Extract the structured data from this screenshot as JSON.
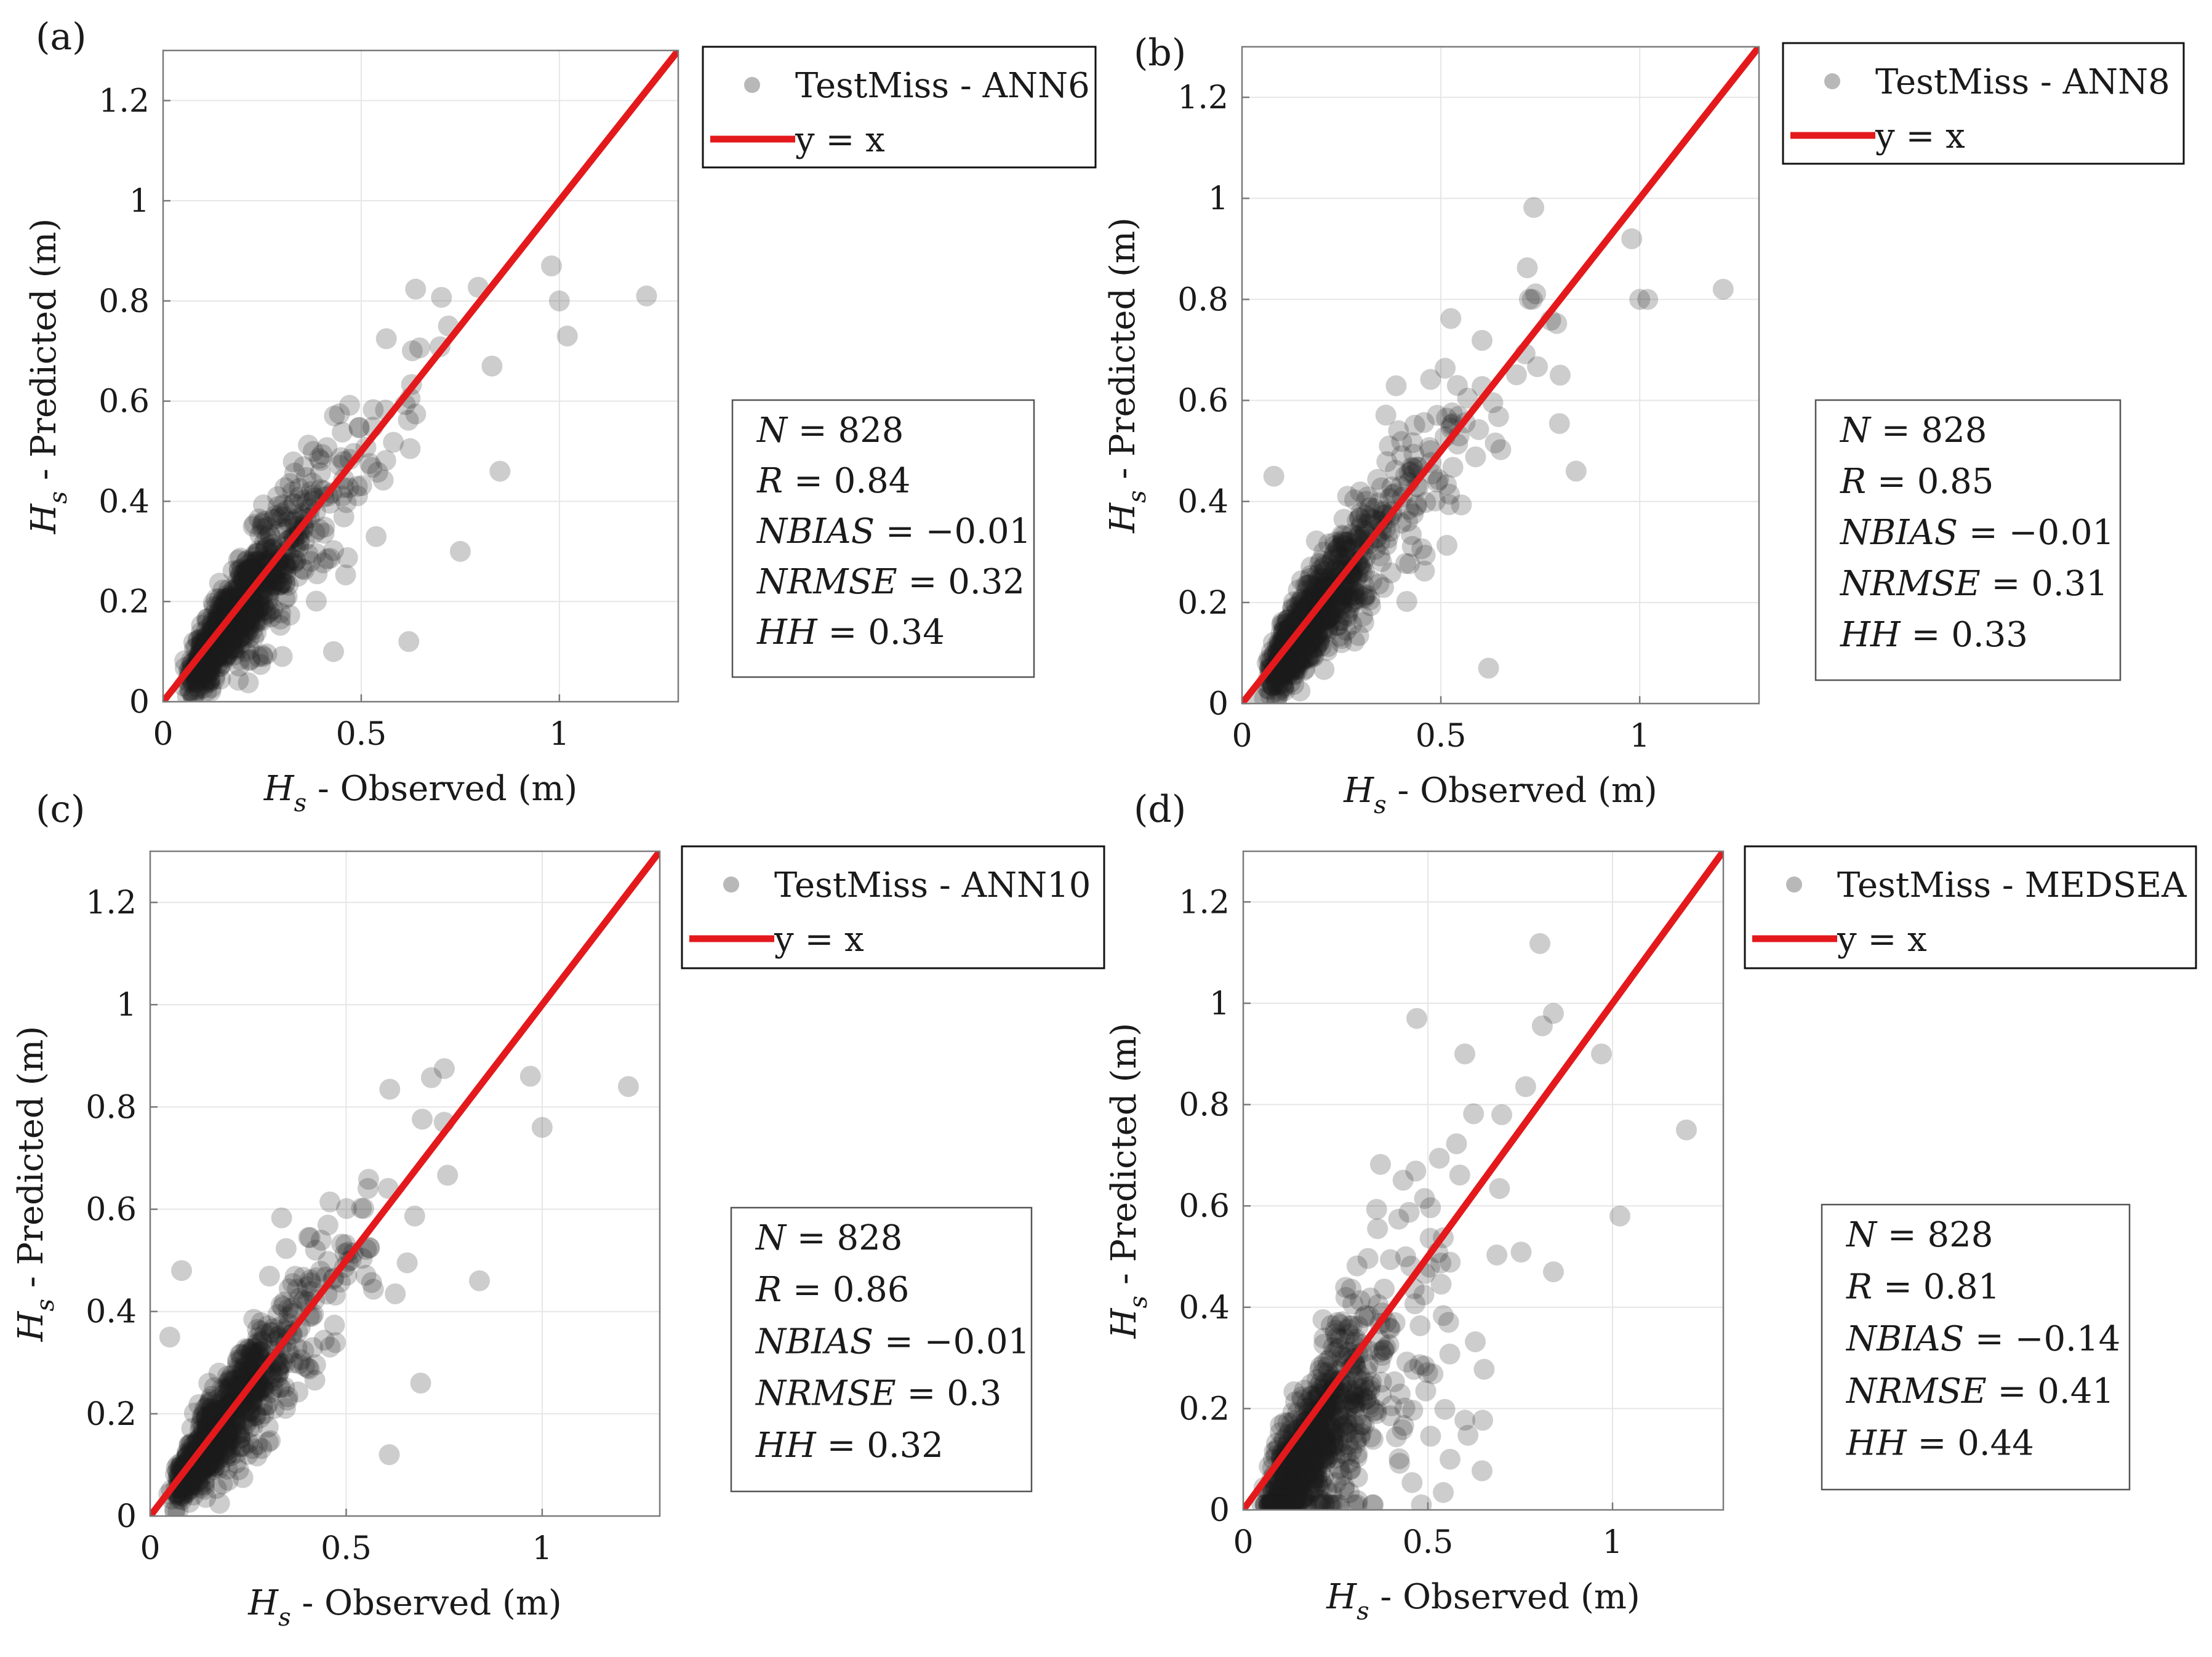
{
  "colors": {
    "points": "#1c1c1c",
    "reference_line": "#e3191c",
    "legend_marker": "#b8b8b8",
    "grid": "#e6e6e6",
    "frame": "#7a7a7a"
  },
  "chart_data": [
    {
      "type": "scatter",
      "panel": "(a)",
      "xlabel": {
        "symbol": "H",
        "sub": "s",
        "text": " - Observed (m)"
      },
      "ylabel": {
        "symbol": "H",
        "sub": "s",
        "text": " - Predicted (m)"
      },
      "xlim": [
        0,
        1.3
      ],
      "ylim": [
        0,
        1.3
      ],
      "xticks": [
        0,
        0.5,
        1
      ],
      "xtick_labels": [
        "0",
        "0.5",
        "1"
      ],
      "yticks": [
        0,
        0.2,
        0.4,
        0.6,
        0.8,
        1,
        1.2
      ],
      "ytick_labels": [
        "0",
        "0.2",
        "0.4",
        "0.6",
        "0.8",
        "1",
        "1.2"
      ],
      "grid": true,
      "legend": {
        "position": "top-right-outside",
        "entries": [
          "TestMiss - ANN6",
          "y = x"
        ]
      },
      "reference_line": {
        "label": "y = x",
        "from": [
          0,
          0
        ],
        "to": [
          1.3,
          1.3
        ]
      },
      "stats": [
        {
          "name": "N",
          "value": "= 828"
        },
        {
          "name": "R",
          "value": "= 0.84"
        },
        {
          "name": "NBIAS",
          "value": "= −0.01"
        },
        {
          "name": "NRMSE",
          "value": "= 0.32"
        },
        {
          "name": "HH",
          "value": "= 0.34"
        }
      ],
      "point_cloud": {
        "n": 828,
        "note_fit_slope": 1.0,
        "bias": -0.01
      },
      "outliers": [
        [
          1.22,
          0.81
        ],
        [
          0.98,
          0.87
        ],
        [
          1.0,
          0.8
        ],
        [
          1.02,
          0.73
        ],
        [
          0.83,
          0.67
        ],
        [
          0.85,
          0.46
        ],
        [
          0.62,
          0.12
        ],
        [
          0.43,
          0.1
        ],
        [
          0.72,
          0.75
        ],
        [
          0.75,
          0.3
        ]
      ]
    },
    {
      "type": "scatter",
      "panel": "(b)",
      "xlabel": {
        "symbol": "H",
        "sub": "s",
        "text": " - Observed (m)"
      },
      "ylabel": {
        "symbol": "H",
        "sub": "s",
        "text": " - Predicted (m)"
      },
      "xlim": [
        0,
        1.3
      ],
      "ylim": [
        0,
        1.3
      ],
      "xticks": [
        0,
        0.5,
        1
      ],
      "xtick_labels": [
        "0",
        "0.5",
        "1"
      ],
      "yticks": [
        0,
        0.2,
        0.4,
        0.6,
        0.8,
        1,
        1.2
      ],
      "ytick_labels": [
        "0",
        "0.2",
        "0.4",
        "0.6",
        "0.8",
        "1",
        "1.2"
      ],
      "grid": true,
      "legend": {
        "position": "top-right-outside",
        "entries": [
          "TestMiss - ANN8",
          "y = x"
        ]
      },
      "reference_line": {
        "label": "y = x",
        "from": [
          0,
          0
        ],
        "to": [
          1.3,
          1.3
        ]
      },
      "stats": [
        {
          "name": "N",
          "value": "= 828"
        },
        {
          "name": "R",
          "value": "= 0.85"
        },
        {
          "name": "NBIAS",
          "value": "= −0.01"
        },
        {
          "name": "NRMSE",
          "value": "= 0.31"
        },
        {
          "name": "HH",
          "value": "= 0.33"
        }
      ],
      "point_cloud": {
        "n": 828,
        "note_fit_slope": 1.0,
        "bias": -0.01
      },
      "outliers": [
        [
          1.21,
          0.82
        ],
        [
          0.98,
          0.92
        ],
        [
          1.0,
          0.8
        ],
        [
          1.02,
          0.8
        ],
        [
          0.84,
          0.46
        ],
        [
          0.62,
          0.07
        ],
        [
          0.73,
          0.8
        ],
        [
          0.8,
          0.65
        ],
        [
          0.08,
          0.45
        ]
      ]
    },
    {
      "type": "scatter",
      "panel": "(c)",
      "xlabel": {
        "symbol": "H",
        "sub": "s",
        "text": " - Observed (m)"
      },
      "ylabel": {
        "symbol": "H",
        "sub": "s",
        "text": " - Predicted (m)"
      },
      "xlim": [
        0,
        1.3
      ],
      "ylim": [
        0,
        1.3
      ],
      "xticks": [
        0,
        0.5,
        1
      ],
      "xtick_labels": [
        "0",
        "0.5",
        "1"
      ],
      "yticks": [
        0,
        0.2,
        0.4,
        0.6,
        0.8,
        1,
        1.2
      ],
      "ytick_labels": [
        "0",
        "0.2",
        "0.4",
        "0.6",
        "0.8",
        "1",
        "1.2"
      ],
      "grid": true,
      "legend": {
        "position": "top-right-outside",
        "entries": [
          "TestMiss - ANN10",
          "y = x"
        ]
      },
      "reference_line": {
        "label": "y = x",
        "from": [
          0,
          0
        ],
        "to": [
          1.3,
          1.3
        ]
      },
      "stats": [
        {
          "name": "N",
          "value": "= 828"
        },
        {
          "name": "R",
          "value": "= 0.86"
        },
        {
          "name": "NBIAS",
          "value": "= −0.01"
        },
        {
          "name": "NRMSE",
          "value": "= 0.3"
        },
        {
          "name": "HH",
          "value": "= 0.32"
        }
      ],
      "point_cloud": {
        "n": 828,
        "note_fit_slope": 1.0,
        "bias": -0.01
      },
      "outliers": [
        [
          1.22,
          0.84
        ],
        [
          0.97,
          0.86
        ],
        [
          1.0,
          0.76
        ],
        [
          0.84,
          0.46
        ],
        [
          0.61,
          0.12
        ],
        [
          0.69,
          0.26
        ],
        [
          0.75,
          0.77
        ],
        [
          0.08,
          0.48
        ],
        [
          0.05,
          0.35
        ]
      ]
    },
    {
      "type": "scatter",
      "panel": "(d)",
      "xlabel": {
        "symbol": "H",
        "sub": "s",
        "text": " - Observed (m)"
      },
      "ylabel": {
        "symbol": "H",
        "sub": "s",
        "text": " - Predicted (m)"
      },
      "xlim": [
        0,
        1.3
      ],
      "ylim": [
        0,
        1.3
      ],
      "xticks": [
        0,
        0.5,
        1
      ],
      "xtick_labels": [
        "0",
        "0.5",
        "1"
      ],
      "yticks": [
        0,
        0.2,
        0.4,
        0.6,
        0.8,
        1,
        1.2
      ],
      "ytick_labels": [
        "0",
        "0.2",
        "0.4",
        "0.6",
        "0.8",
        "1",
        "1.2"
      ],
      "grid": true,
      "legend": {
        "position": "top-right-outside",
        "entries": [
          "TestMiss - MEDSEA",
          "y = x"
        ]
      },
      "reference_line": {
        "label": "y = x",
        "from": [
          0,
          0
        ],
        "to": [
          1.3,
          1.3
        ]
      },
      "stats": [
        {
          "name": "N",
          "value": "= 828"
        },
        {
          "name": "R",
          "value": "= 0.81"
        },
        {
          "name": "NBIAS",
          "value": "= −0.14"
        },
        {
          "name": "NRMSE",
          "value": "= 0.41"
        },
        {
          "name": "HH",
          "value": "= 0.44"
        }
      ],
      "point_cloud": {
        "n": 828,
        "note_fit_slope": 1.0,
        "bias": -0.14
      },
      "outliers": [
        [
          1.2,
          0.75
        ],
        [
          1.02,
          0.58
        ],
        [
          0.97,
          0.9
        ],
        [
          0.84,
          0.98
        ],
        [
          0.84,
          0.47
        ],
        [
          0.47,
          0.97
        ],
        [
          0.6,
          0.9
        ],
        [
          0.7,
          0.78
        ],
        [
          0.56,
          0.1
        ]
      ]
    }
  ]
}
